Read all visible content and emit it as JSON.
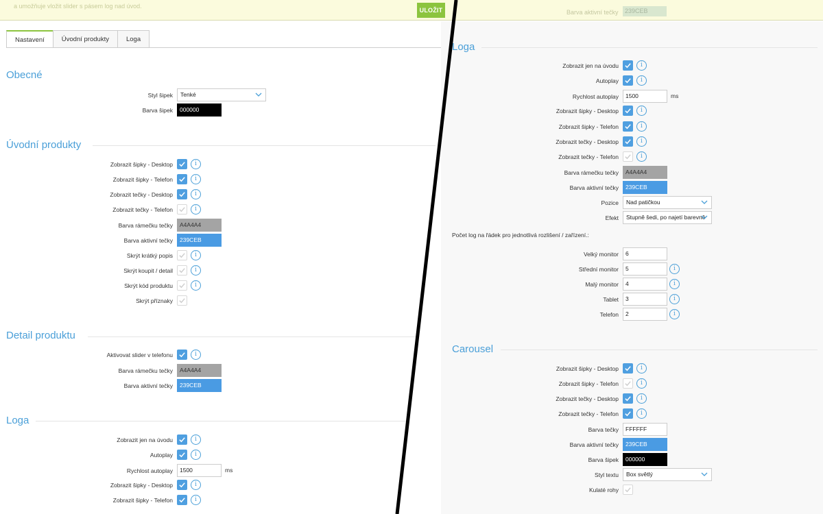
{
  "banner": {
    "text": "a umožňuje vložit slider s pásem log nad úvod.",
    "save_label": "ULOŽIT",
    "ghost_label": "Barva aktivní tečky",
    "ghost_value": "239CEB"
  },
  "tabs": [
    "Nastavení",
    "Úvodní produkty",
    "Loga"
  ],
  "left": {
    "obecne": {
      "title": "Obecné",
      "arrow_style_label": "Styl šipek",
      "arrow_style_value": "Tenké",
      "arrow_color_label": "Barva šipek",
      "arrow_color_value": "000000"
    },
    "uvodni": {
      "title": "Úvodní produkty",
      "rows": [
        {
          "label": "Zobrazit šipky - Desktop"
        },
        {
          "label": "Zobrazit šipky - Telefon"
        },
        {
          "label": "Zobrazit tečky - Desktop"
        },
        {
          "label": "Zobrazit tečky - Telefon"
        },
        {
          "label": "Barva rámečku tečky",
          "value": "A4A4A4"
        },
        {
          "label": "Barva aktivní tečky",
          "value": "239CEB"
        },
        {
          "label": "Skrýt krátký popis"
        },
        {
          "label": "Skrýt koupit / detail"
        },
        {
          "label": "Skrýt kód produktu"
        },
        {
          "label": "Skrýt příznaky"
        }
      ]
    },
    "detail": {
      "title": "Detail produktu",
      "rows": [
        {
          "label": "Aktivovat slider v telefonu"
        },
        {
          "label": "Barva rámečku tečky",
          "value": "A4A4A4"
        },
        {
          "label": "Barva aktivní tečky",
          "value": "239CEB"
        }
      ]
    },
    "loga": {
      "title": "Loga",
      "rows": [
        {
          "label": "Zobrazit jen na úvodu"
        },
        {
          "label": "Autoplay"
        },
        {
          "label": "Rychlost autoplay",
          "value": "1500",
          "unit": "ms"
        },
        {
          "label": "Zobrazit šipky - Desktop"
        },
        {
          "label": "Zobrazit šipky - Telefon"
        }
      ]
    }
  },
  "right": {
    "loga": {
      "title": "Loga",
      "rows": [
        {
          "label": "Zobrazit jen na úvodu"
        },
        {
          "label": "Autoplay"
        },
        {
          "label": "Rychlost autoplay",
          "value": "1500",
          "unit": "ms"
        },
        {
          "label": "Zobrazit šipky - Desktop"
        },
        {
          "label": "Zobrazit šipky - Telefon"
        },
        {
          "label": "Zobrazit tečky - Desktop"
        },
        {
          "label": "Zobrazit tečky - Telefon"
        },
        {
          "label": "Barva rámečku tečky",
          "value": "A4A4A4"
        },
        {
          "label": "Barva aktivní tečky",
          "value": "239CEB"
        },
        {
          "label": "Pozice",
          "value": "Nad patičkou"
        },
        {
          "label": "Efekt",
          "value": "Stupně šedi, po najetí barevně"
        }
      ],
      "count_note": "Počet log na řádek pro jednotlivá rozlišení / zařízení.:",
      "counts": [
        {
          "label": "Velký monitor",
          "value": "6"
        },
        {
          "label": "Střední monitor",
          "value": "5"
        },
        {
          "label": "Malý monitor",
          "value": "4"
        },
        {
          "label": "Tablet",
          "value": "3"
        },
        {
          "label": "Telefon",
          "value": "2"
        }
      ]
    },
    "carousel": {
      "title": "Carousel",
      "rows": [
        {
          "label": "Zobrazit šipky - Desktop"
        },
        {
          "label": "Zobrazit šipky - Telefon"
        },
        {
          "label": "Zobrazit tečky - Desktop"
        },
        {
          "label": "Zobrazit tečky - Telefon"
        },
        {
          "label": "Barva tečky",
          "value": "FFFFFF"
        },
        {
          "label": "Barva aktivní tečky",
          "value": "239CEB"
        },
        {
          "label": "Barva šipek",
          "value": "000000"
        },
        {
          "label": "Styl textu",
          "value": "Box světlý"
        },
        {
          "label": "Kulaté rohy"
        }
      ]
    }
  },
  "colors": {
    "accent": "#4a9fd8",
    "save_green": "#8cc43e",
    "check_blue": "#4f9fe0"
  }
}
